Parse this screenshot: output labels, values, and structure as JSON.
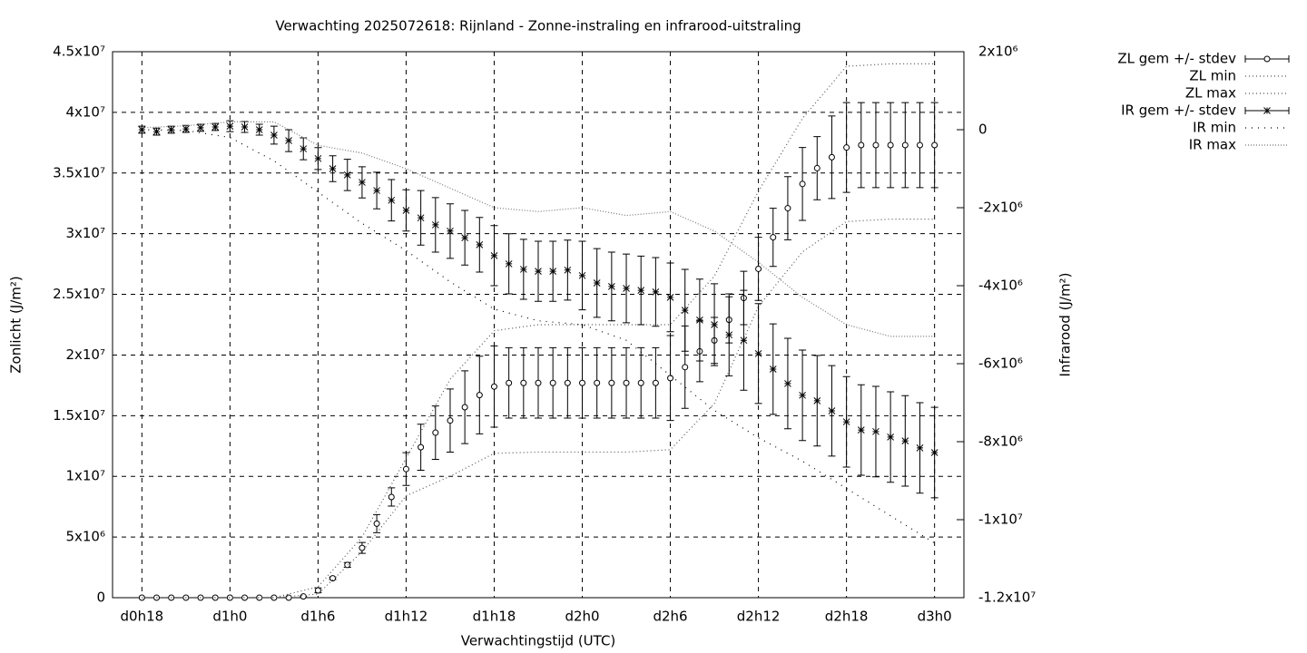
{
  "chart_data": {
    "type": "errorbar",
    "title": "Verwachting 2025072618: Rijnland - Zonne-instraling en infrarood-uitstraling",
    "xlabel": "Verwachtingstijd (UTC)",
    "ylabel": "Zonlicht (J/m²)",
    "y2label": "Infrarood (J/m²)",
    "x": [
      0,
      1,
      2,
      3,
      4,
      5,
      6,
      7,
      8,
      9,
      10,
      11,
      12,
      13,
      14,
      15,
      16,
      17,
      18,
      19,
      20,
      21,
      22,
      23,
      24,
      25,
      26,
      27,
      28,
      29,
      30,
      31,
      32,
      33,
      34,
      35,
      36,
      37,
      38,
      39,
      40,
      41,
      42,
      43,
      44,
      45,
      46,
      47,
      48,
      49,
      50,
      51,
      52,
      53,
      54
    ],
    "xlim": [
      -2,
      56
    ],
    "xticks": [
      {
        "value": 0,
        "label": "d0h18"
      },
      {
        "value": 6,
        "label": "d1h0"
      },
      {
        "value": 12,
        "label": "d1h6"
      },
      {
        "value": 18,
        "label": "d1h12"
      },
      {
        "value": 24,
        "label": "d1h18"
      },
      {
        "value": 30,
        "label": "d2h0"
      },
      {
        "value": 36,
        "label": "d2h6"
      },
      {
        "value": 42,
        "label": "d2h12"
      },
      {
        "value": 48,
        "label": "d2h18"
      },
      {
        "value": 54,
        "label": "d3h0"
      }
    ],
    "ylim": [
      0,
      45000000
    ],
    "yticks": [
      0,
      {
        "value": 5000000,
        "label": "5x10⁶"
      },
      {
        "value": 10000000,
        "label": "1x10⁷"
      },
      {
        "value": 15000000,
        "label": "1.5x10⁷"
      },
      {
        "value": 20000000,
        "label": "2x10⁷"
      },
      {
        "value": 25000000,
        "label": "2.5x10⁷"
      },
      {
        "value": 30000000,
        "label": "3x10⁷"
      },
      {
        "value": 35000000,
        "label": "3.5x10⁷"
      },
      {
        "value": 40000000,
        "label": "4x10⁷"
      },
      {
        "value": 45000000,
        "label": "4.5x10⁷"
      }
    ],
    "y2lim": [
      -12000000,
      2000000
    ],
    "y2ticks": [
      {
        "value": -12000000,
        "label": "-1.2x10⁷"
      },
      {
        "value": -10000000,
        "label": "-1x10⁷"
      },
      {
        "value": -8000000,
        "label": "-8x10⁶"
      },
      {
        "value": -6000000,
        "label": "-6x10⁶"
      },
      {
        "value": -4000000,
        "label": "-4x10⁶"
      },
      {
        "value": -2000000,
        "label": "-2x10⁶"
      },
      0,
      {
        "value": 2000000,
        "label": "2x10⁶"
      }
    ],
    "grid": true,
    "legend": "outside-top-right",
    "series": [
      {
        "name": "ZL gem +/- stdev",
        "color": "#000000",
        "style": "errorbars",
        "marker": "circle",
        "values": [
          0,
          0,
          0,
          0,
          0,
          0,
          0,
          0,
          0,
          0,
          0,
          100000,
          600000,
          1600000,
          2700000,
          4100000,
          6100000,
          8300000,
          10600000,
          12400000,
          13600000,
          14600000,
          15700000,
          16700000,
          17400000,
          17700000,
          17700000,
          17700000,
          17700000,
          17700000,
          17700000,
          17700000,
          17700000,
          17700000,
          17700000,
          17700000,
          18100000,
          19000000,
          20300000,
          21200000,
          22900000,
          24700000,
          27100000,
          29700000,
          32100000,
          34100000,
          35400000,
          36300000,
          37100000,
          37300000,
          37300000,
          37300000,
          37300000,
          37300000,
          37300000
        ],
        "errors": [
          0,
          0,
          0,
          0,
          0,
          0,
          0,
          0,
          0,
          0,
          0,
          0,
          200000,
          100000,
          200000,
          450000,
          750000,
          750000,
          1350000,
          1900000,
          2200000,
          2600000,
          3000000,
          3200000,
          3350000,
          2900000,
          2900000,
          2900000,
          2900000,
          2900000,
          2900000,
          2900000,
          2900000,
          2900000,
          2900000,
          2900000,
          3500000,
          3400000,
          2500000,
          1900000,
          1900000,
          2200000,
          2600000,
          2400000,
          2600000,
          3000000,
          2600000,
          3400000,
          3700000,
          3500000,
          3500000,
          3500000,
          3500000,
          3500000,
          3500000
        ]
      },
      {
        "name": "ZL min",
        "color": "#555555",
        "style": "line",
        "dash": "1 3",
        "x": [
          0,
          3,
          6,
          9,
          12,
          15,
          18,
          21,
          24,
          27,
          30,
          33,
          36,
          39,
          42,
          45,
          48,
          51,
          54
        ],
        "values": [
          0,
          0,
          0,
          0,
          300000,
          3800000,
          8400000,
          10000000,
          11900000,
          12000000,
          12000000,
          12000000,
          12200000,
          16000000,
          24000000,
          28500000,
          31000000,
          31200000,
          31200000
        ]
      },
      {
        "name": "ZL max",
        "color": "#555555",
        "style": "line",
        "dash": "1 3",
        "x": [
          0,
          3,
          6,
          9,
          12,
          15,
          18,
          21,
          24,
          27,
          30,
          33,
          36,
          39,
          42,
          45,
          48,
          51,
          54
        ],
        "values": [
          0,
          0,
          0,
          0,
          900000,
          5000000,
          11500000,
          18000000,
          22000000,
          22500000,
          22500000,
          22500000,
          22500000,
          26500000,
          33500000,
          39500000,
          43800000,
          44000000,
          44000000
        ]
      },
      {
        "name": "IR gem +/- stdev",
        "color": "#000000",
        "style": "errorbars",
        "marker": "star",
        "axis": "y2",
        "values": [
          0,
          -50000,
          0,
          20000,
          50000,
          70000,
          90000,
          70000,
          0,
          -140000,
          -280000,
          -490000,
          -740000,
          -1000000,
          -1160000,
          -1350000,
          -1560000,
          -1810000,
          -2070000,
          -2260000,
          -2440000,
          -2600000,
          -2770000,
          -2950000,
          -3230000,
          -3440000,
          -3580000,
          -3630000,
          -3630000,
          -3600000,
          -3740000,
          -3930000,
          -4020000,
          -4070000,
          -4120000,
          -4160000,
          -4300000,
          -4630000,
          -4880000,
          -5000000,
          -5260000,
          -5400000,
          -5740000,
          -6140000,
          -6510000,
          -6810000,
          -6950000,
          -7210000,
          -7490000,
          -7700000,
          -7740000,
          -7880000,
          -7980000,
          -8160000,
          -8280000
        ],
        "errors": [
          90000,
          90000,
          90000,
          90000,
          90000,
          90000,
          140000,
          140000,
          140000,
          230000,
          280000,
          280000,
          280000,
          330000,
          400000,
          400000,
          470000,
          530000,
          530000,
          700000,
          700000,
          700000,
          700000,
          700000,
          770000,
          770000,
          770000,
          770000,
          770000,
          770000,
          880000,
          880000,
          880000,
          880000,
          880000,
          880000,
          880000,
          1050000,
          1050000,
          1050000,
          1050000,
          1280000,
          1280000,
          1160000,
          1160000,
          1160000,
          1160000,
          1160000,
          1160000,
          1160000,
          1160000,
          1160000,
          1160000,
          1160000,
          1160000
        ]
      },
      {
        "name": "IR min",
        "color": "#000000",
        "style": "line",
        "dash": "1 6",
        "axis": "y2",
        "x": [
          0,
          3,
          6,
          9,
          12,
          15,
          18,
          21,
          24,
          27,
          30,
          33,
          36,
          39,
          42,
          45,
          48,
          51,
          54
        ],
        "values": [
          0,
          -20000,
          -200000,
          -800000,
          -1600000,
          -2400000,
          -3100000,
          -3900000,
          -4600000,
          -4900000,
          -5000000,
          -5400000,
          -6300000,
          -7200000,
          -7900000,
          -8500000,
          -9200000,
          -9900000,
          -10600000
        ]
      },
      {
        "name": "IR max",
        "color": "#777777",
        "style": "line",
        "dash": "1 2",
        "axis": "y2",
        "x": [
          0,
          3,
          6,
          9,
          12,
          15,
          18,
          21,
          24,
          27,
          30,
          33,
          36,
          39,
          42,
          45,
          48,
          51,
          54
        ],
        "values": [
          50000,
          100000,
          200000,
          200000,
          -400000,
          -600000,
          -1000000,
          -1500000,
          -2000000,
          -2100000,
          -2000000,
          -2200000,
          -2100000,
          -2600000,
          -3400000,
          -4300000,
          -5000000,
          -5300000,
          -5300000
        ]
      }
    ]
  }
}
